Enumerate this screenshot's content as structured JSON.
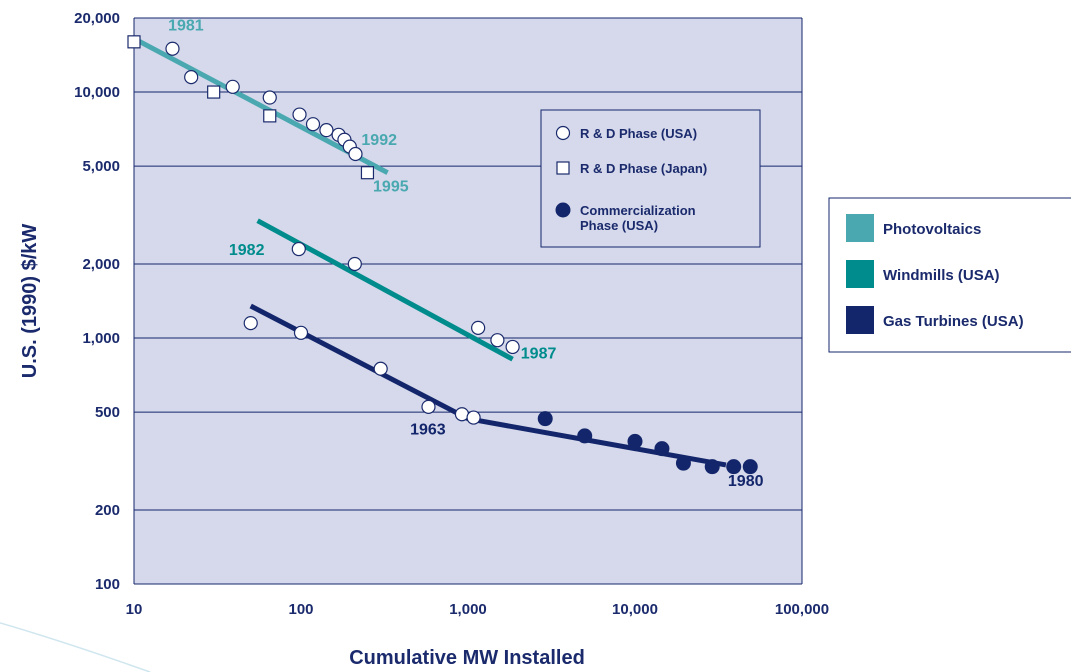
{
  "chart_data": {
    "type": "scatter",
    "x_scale": "log",
    "y_scale": "log",
    "xlim": [
      10,
      100000
    ],
    "ylim": [
      100,
      20000
    ],
    "xlabel": "Cumulative MW Installed",
    "ylabel": "U.S. (1990) $/kW",
    "x_ticks": [
      {
        "v": 10,
        "label": "10"
      },
      {
        "v": 100,
        "label": "100"
      },
      {
        "v": 1000,
        "label": "1,000"
      },
      {
        "v": 10000,
        "label": "10,000"
      },
      {
        "v": 100000,
        "label": "100,000"
      }
    ],
    "y_ticks": [
      {
        "v": 100,
        "label": "100"
      },
      {
        "v": 200,
        "label": "200"
      },
      {
        "v": 500,
        "label": "500"
      },
      {
        "v": 1000,
        "label": "1,000"
      },
      {
        "v": 2000,
        "label": "2,000"
      },
      {
        "v": 5000,
        "label": "5,000"
      },
      {
        "v": 10000,
        "label": "10,000"
      },
      {
        "v": 20000,
        "label": "20,000"
      }
    ],
    "grid": true,
    "series": [
      {
        "name": "Photovoltaics",
        "color": "#4aa8b0",
        "trend": [
          [
            10,
            16500
          ],
          [
            330,
            4700
          ]
        ],
        "points": [
          {
            "x": 10,
            "y": 16000,
            "marker": "square-open"
          },
          {
            "x": 17,
            "y": 15000,
            "marker": "circle-open"
          },
          {
            "x": 22,
            "y": 11500,
            "marker": "circle-open"
          },
          {
            "x": 30,
            "y": 10000,
            "marker": "square-open"
          },
          {
            "x": 39,
            "y": 10500,
            "marker": "circle-open"
          },
          {
            "x": 65,
            "y": 9500,
            "marker": "circle-open"
          },
          {
            "x": 65,
            "y": 8000,
            "marker": "square-open"
          },
          {
            "x": 98,
            "y": 8100,
            "marker": "circle-open"
          },
          {
            "x": 118,
            "y": 7400,
            "marker": "circle-open"
          },
          {
            "x": 142,
            "y": 7000,
            "marker": "circle-open"
          },
          {
            "x": 168,
            "y": 6700,
            "marker": "circle-open"
          },
          {
            "x": 182,
            "y": 6400,
            "marker": "circle-open"
          },
          {
            "x": 196,
            "y": 6000,
            "marker": "circle-open"
          },
          {
            "x": 212,
            "y": 5600,
            "marker": "circle-open"
          },
          {
            "x": 250,
            "y": 4700,
            "marker": "square-open"
          }
        ]
      },
      {
        "name": "Windmills (USA)",
        "color": "#008c8c",
        "trend": [
          [
            55,
            3000
          ],
          [
            1850,
            820
          ]
        ],
        "points": [
          {
            "x": 97,
            "y": 2300,
            "marker": "circle-open"
          },
          {
            "x": 210,
            "y": 2000,
            "marker": "circle-open"
          },
          {
            "x": 1150,
            "y": 1100,
            "marker": "circle-open"
          },
          {
            "x": 1500,
            "y": 980,
            "marker": "circle-open"
          },
          {
            "x": 1850,
            "y": 920,
            "marker": "circle-open"
          }
        ]
      },
      {
        "name": "Gas Turbines (USA)",
        "color": "#14266b",
        "trend": [
          [
            50,
            1350
          ],
          [
            1000,
            470
          ],
          [
            35000,
            305
          ]
        ],
        "points": [
          {
            "x": 50,
            "y": 1150,
            "marker": "circle-open"
          },
          {
            "x": 100,
            "y": 1050,
            "marker": "circle-open"
          },
          {
            "x": 300,
            "y": 750,
            "marker": "circle-open"
          },
          {
            "x": 580,
            "y": 525,
            "marker": "circle-open"
          },
          {
            "x": 920,
            "y": 490,
            "marker": "circle-open"
          },
          {
            "x": 1080,
            "y": 475,
            "marker": "circle-open"
          },
          {
            "x": 2900,
            "y": 470,
            "marker": "circle-filled"
          },
          {
            "x": 5000,
            "y": 400,
            "marker": "circle-filled"
          },
          {
            "x": 10000,
            "y": 380,
            "marker": "circle-filled"
          },
          {
            "x": 14500,
            "y": 355,
            "marker": "circle-filled"
          },
          {
            "x": 19500,
            "y": 310,
            "marker": "circle-filled"
          },
          {
            "x": 29000,
            "y": 300,
            "marker": "circle-filled"
          },
          {
            "x": 39000,
            "y": 300,
            "marker": "circle-filled"
          },
          {
            "x": 49000,
            "y": 300,
            "marker": "circle-filled"
          }
        ]
      }
    ],
    "annotations": [
      {
        "text": "1981",
        "x": 16,
        "y": 17800,
        "color": "#4aa8b0"
      },
      {
        "text": "1992",
        "x": 230,
        "y": 6100,
        "color": "#4aa8b0"
      },
      {
        "text": "1995",
        "x": 270,
        "y": 3950,
        "color": "#4aa8b0"
      },
      {
        "text": "1982",
        "x": 37,
        "y": 2180,
        "color": "#008c8c"
      },
      {
        "text": "1987",
        "x": 2070,
        "y": 825,
        "color": "#008c8c"
      },
      {
        "text": "1963",
        "x": 450,
        "y": 405,
        "color": "#14266b"
      },
      {
        "text": "1980",
        "x": 36000,
        "y": 250,
        "color": "#14266b"
      }
    ],
    "marker_legend": [
      {
        "marker": "circle-open",
        "label": [
          "R & D Phase (USA)"
        ]
      },
      {
        "marker": "square-open",
        "label": [
          "R & D Phase (Japan)"
        ]
      },
      {
        "marker": "circle-filled",
        "label": [
          "Commercialization",
          "Phase (USA)"
        ]
      }
    ],
    "series_legend": [
      {
        "label": "Photovoltaics",
        "color": "#4aa8b0"
      },
      {
        "label": "Windmills (USA)",
        "color": "#008c8c"
      },
      {
        "label": "Gas Turbines (USA)",
        "color": "#14266b"
      }
    ],
    "colors": {
      "plot_bg": "#d5d9eb",
      "axis": "#14266b",
      "text": "#1a2a6c"
    }
  }
}
